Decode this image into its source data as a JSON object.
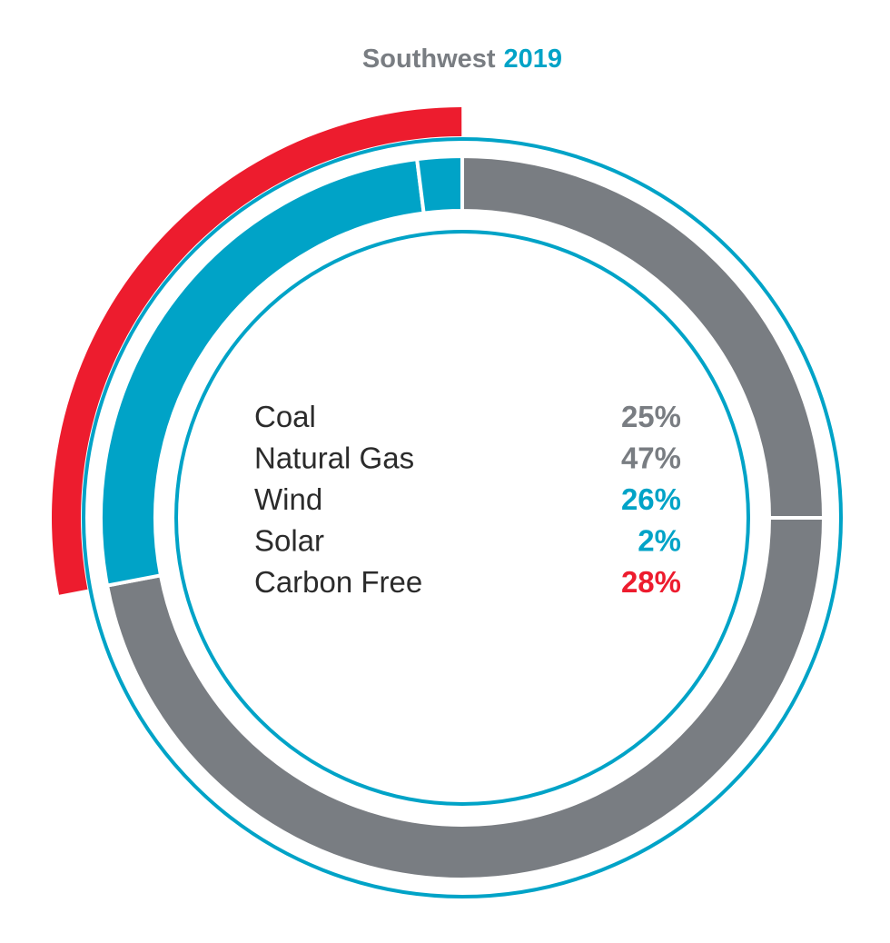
{
  "chart_data": {
    "type": "pie",
    "title": {
      "region": "Southwest",
      "year": "2019"
    },
    "categories": [
      "Coal",
      "Natural Gas",
      "Wind",
      "Solar",
      "Carbon Free"
    ],
    "values": [
      25,
      47,
      26,
      2,
      28
    ],
    "value_labels": [
      "25%",
      "47%",
      "26%",
      "2%",
      "28%"
    ],
    "unit": "%",
    "rings": {
      "inner": {
        "segments": [
          {
            "category": "Coal",
            "value": 25,
            "color": "#797d82"
          },
          {
            "category": "Natural Gas",
            "value": 47,
            "color": "#797d82"
          },
          {
            "category": "Wind",
            "value": 26,
            "color": "#00a3c7"
          },
          {
            "category": "Solar",
            "value": 2,
            "color": "#00a3c7"
          }
        ]
      },
      "outer": {
        "segments": [
          {
            "category": "Carbon Free",
            "value": 28,
            "color": "#ed1c2e"
          }
        ]
      }
    },
    "label_colors": [
      "#797d82",
      "#797d82",
      "#00a3c7",
      "#00a3c7",
      "#ed1c2e"
    ]
  },
  "colors": {
    "gray": "#797d82",
    "teal": "#00a3c7",
    "red": "#ed1c2e",
    "label_text": "#2b2b2b"
  }
}
